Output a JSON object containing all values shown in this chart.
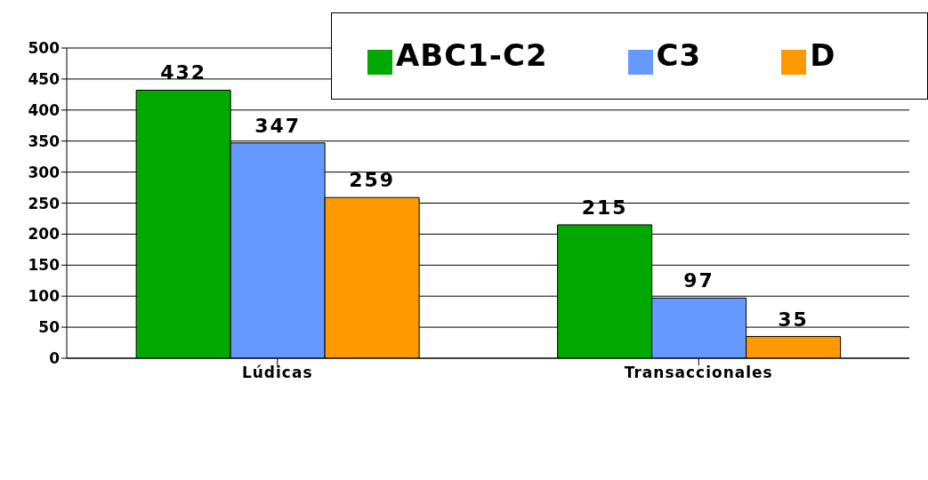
{
  "chart_data": {
    "type": "bar",
    "categories": [
      "Lúdicas",
      "Transaccionales"
    ],
    "series": [
      {
        "name": "ABC1-C2",
        "color": "#00a800",
        "values": [
          432,
          215
        ]
      },
      {
        "name": "C3",
        "color": "#6699ff",
        "values": [
          347,
          97
        ]
      },
      {
        "name": "D",
        "color": "#ff9900",
        "values": [
          259,
          35
        ]
      }
    ],
    "ylim": [
      0,
      500
    ],
    "yticks": [
      0,
      50,
      100,
      150,
      200,
      250,
      300,
      350,
      400,
      450,
      500
    ],
    "grid": "y",
    "legend": "top right",
    "data_labels": true
  }
}
